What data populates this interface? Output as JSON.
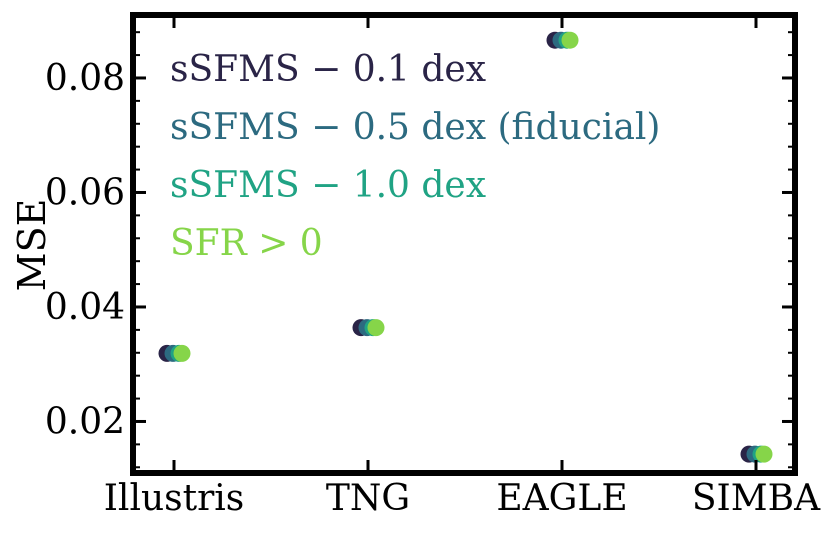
{
  "chart_data": {
    "type": "scatter",
    "title": "",
    "xlabel": "",
    "ylabel": "MSE",
    "categories": [
      "Illustris",
      "TNG",
      "EAGLE",
      "SIMBA"
    ],
    "ylim": [
      0.011,
      0.091
    ],
    "yticks": [
      "0.02",
      "0.04",
      "0.06",
      "0.08"
    ],
    "ytick_values": [
      0.02,
      0.04,
      0.06,
      0.08
    ],
    "grid": false,
    "legend_position": "top-left",
    "series": [
      {
        "name": "sSFMS − 0.1 dex",
        "color": "#2a2447",
        "values": [
          0.0319,
          0.0364,
          0.0866,
          0.0143
        ]
      },
      {
        "name": "sSFMS − 0.5 dex (fiducial)",
        "color": "#2c6a80",
        "values": [
          0.0319,
          0.0364,
          0.0866,
          0.0143
        ]
      },
      {
        "name": "sSFMS − 1.0 dex",
        "color": "#20a384",
        "values": [
          0.0319,
          0.0364,
          0.0866,
          0.0143
        ]
      },
      {
        "name": "SFR > 0",
        "color": "#86d549",
        "values": [
          0.0319,
          0.0364,
          0.0866,
          0.0143
        ]
      }
    ]
  }
}
